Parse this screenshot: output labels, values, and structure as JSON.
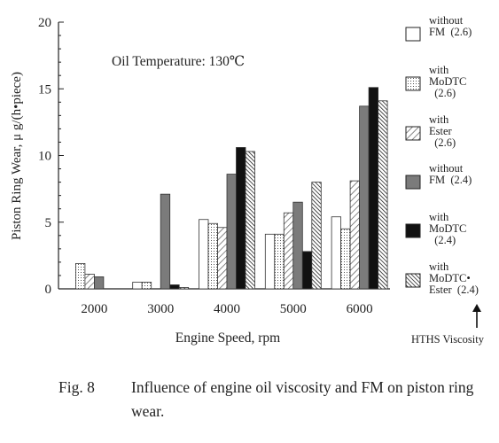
{
  "chart_data": {
    "type": "bar",
    "ylabel": "Piston Ring Wear,  μ g/(h•piece)",
    "xlabel": "Engine Speed, rpm",
    "annotation": "Oil Temperature:  130℃",
    "ylim": [
      0,
      20
    ],
    "yticks": [
      0,
      5,
      10,
      15,
      20
    ],
    "categories": [
      "2000",
      "3000",
      "4000",
      "5000",
      "6000"
    ],
    "series": [
      {
        "name": "without FM (2.6)",
        "legend_lines": [
          "without",
          "FM  (2.6)"
        ],
        "pattern": "white",
        "values": [
          0,
          0.5,
          5.2,
          4.1,
          5.4
        ]
      },
      {
        "name": "with MoDTC (2.6)",
        "legend_lines": [
          "with",
          "MoDTC",
          "  (2.6)"
        ],
        "pattern": "dots",
        "values": [
          1.9,
          0.5,
          4.9,
          4.1,
          4.5
        ]
      },
      {
        "name": "with Ester (2.6)",
        "legend_lines": [
          "with",
          "Ester",
          "  (2.6)"
        ],
        "pattern": "hatch-light",
        "values": [
          1.1,
          0,
          4.6,
          5.7,
          8.1
        ]
      },
      {
        "name": "without FM (2.4)",
        "legend_lines": [
          "without",
          "FM  (2.4)"
        ],
        "pattern": "gray",
        "values": [
          0.9,
          7.1,
          8.6,
          6.5,
          13.7
        ]
      },
      {
        "name": "with MoDTC (2.4)",
        "legend_lines": [
          "with",
          "MoDTC",
          "  (2.4)"
        ],
        "pattern": "black",
        "values": [
          0,
          0.3,
          10.6,
          2.8,
          15.1
        ]
      },
      {
        "name": "with MoDTC•Ester (2.4)",
        "legend_lines": [
          "with",
          "MoDTC•",
          "Ester  (2.4)"
        ],
        "pattern": "hatch-dense",
        "values": [
          0,
          0.1,
          10.3,
          8.0,
          14.1
        ]
      }
    ],
    "legend_note": "HTHS Viscosity",
    "colors": {
      "gray": "#7b7b7b",
      "black": "#111111",
      "axis": "#222222"
    }
  },
  "caption": {
    "fig": "Fig. 8",
    "text": "Influence of engine oil viscosity and FM on piston ring wear."
  }
}
